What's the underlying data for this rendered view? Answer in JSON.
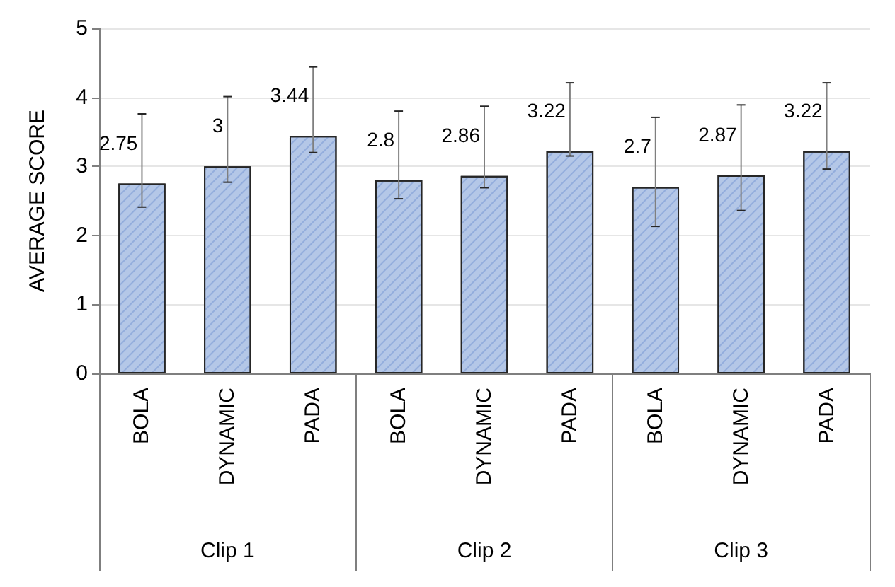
{
  "chart_data": {
    "type": "bar",
    "ylabel": "AVERAGE SCORE",
    "categories": [
      "BOLA",
      "DYNAMIC",
      "PADA",
      "BOLA",
      "DYNAMIC",
      "PADA",
      "BOLA",
      "DYNAMIC",
      "PADA"
    ],
    "values": [
      2.75,
      3,
      3.44,
      2.8,
      2.86,
      3.22,
      2.7,
      2.87,
      3.22
    ],
    "errors": [
      [
        2.41,
        3.76
      ],
      [
        2.77,
        4.01
      ],
      [
        3.2,
        4.44
      ],
      [
        2.53,
        3.8
      ],
      [
        2.69,
        3.87
      ],
      [
        3.15,
        4.21
      ],
      [
        2.13,
        3.71
      ],
      [
        2.36,
        3.89
      ],
      [
        2.96,
        4.21
      ]
    ],
    "color": "#b4c7e7",
    "data_labels": true,
    "ylim": [
      0,
      5
    ],
    "yticks": [
      0,
      1,
      2,
      3,
      4,
      5
    ],
    "grid": "y",
    "annotations": [
      "Clip 1",
      "Clip 2",
      "Clip 3"
    ]
  }
}
